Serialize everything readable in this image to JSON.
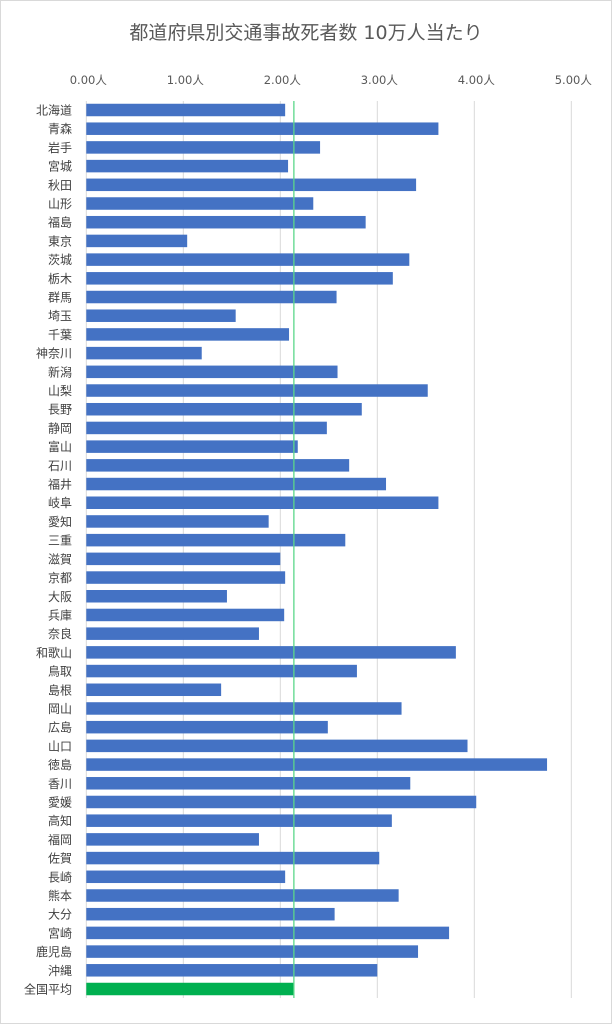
{
  "chart_data": {
    "type": "bar",
    "orientation": "horizontal",
    "title": "都道府県別交通事故死者数 10万人当たり",
    "xlabel": "",
    "ylabel": "",
    "xlim": [
      0,
      5
    ],
    "x_ticks": [
      "0.00人",
      "1.00人",
      "2.00人",
      "3.00人",
      "4.00人",
      "5.00人"
    ],
    "x_tick_values": [
      0,
      1,
      2,
      3,
      4,
      5
    ],
    "axis_position": "top",
    "grid": true,
    "categories": [
      "北海道",
      "青森",
      "岩手",
      "宮城",
      "秋田",
      "山形",
      "福島",
      "東京",
      "茨城",
      "栃木",
      "群馬",
      "埼玉",
      "千葉",
      "神奈川",
      "新潟",
      "山梨",
      "長野",
      "静岡",
      "富山",
      "石川",
      "福井",
      "岐阜",
      "愛知",
      "三重",
      "滋賀",
      "京都",
      "大阪",
      "兵庫",
      "奈良",
      "和歌山",
      "鳥取",
      "島根",
      "岡山",
      "広島",
      "山口",
      "徳島",
      "香川",
      "愛媛",
      "高知",
      "福岡",
      "佐賀",
      "長崎",
      "熊本",
      "大分",
      "宮崎",
      "鹿児島",
      "沖縄",
      "全国平均"
    ],
    "values": [
      2.05,
      3.63,
      2.41,
      2.08,
      3.4,
      2.34,
      2.88,
      1.04,
      3.33,
      3.16,
      2.58,
      1.54,
      2.09,
      1.19,
      2.59,
      3.52,
      2.84,
      2.48,
      2.18,
      2.71,
      3.09,
      3.63,
      1.88,
      2.67,
      2.0,
      2.05,
      1.45,
      2.04,
      1.78,
      3.81,
      2.79,
      1.39,
      3.25,
      2.49,
      3.93,
      4.75,
      3.34,
      4.02,
      3.15,
      1.78,
      3.02,
      2.05,
      3.22,
      2.56,
      3.74,
      3.42,
      3.0,
      2.14
    ],
    "highlight_category": "全国平均",
    "reference_line": 2.14,
    "colors": {
      "bar": "#4472c4",
      "highlight": "#00b050",
      "reference_line": "#5bd68a",
      "grid": "#d9d9d9"
    }
  }
}
